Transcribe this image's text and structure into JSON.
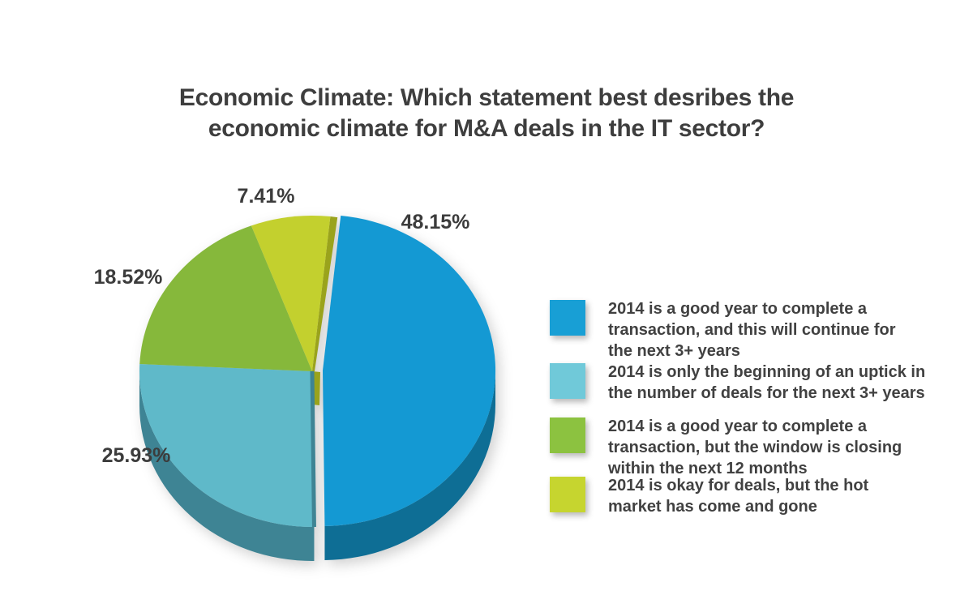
{
  "title": {
    "line1": "Economic Climate: Which statement best desribes the",
    "line2": "economic climate for M&A deals in the IT sector?"
  },
  "chart_data": {
    "type": "pie",
    "title": "Economic Climate: Which statement best desribes the economic climate for M&A deals in the IT sector?",
    "style": "3d-exploded-pie",
    "legend_position": "right",
    "unit": "percent",
    "slices": [
      {
        "id": "blue",
        "label": "2014 is a good year to complete a transaction, and this will continue for the next 3+ years",
        "value": 48.15,
        "display": "48.15%",
        "color": "#1499d3",
        "side_color": "#0e6e95",
        "exploded": true
      },
      {
        "id": "teal",
        "label": "2014 is only the beginning of an uptick in the number of deals for the next 3+ years",
        "value": 25.93,
        "display": "25.93%",
        "color": "#5fb9c9",
        "side_color": "#3e8494",
        "exploded": false
      },
      {
        "id": "green",
        "label": "2014 is a good year to complete a transaction, but the window is closing within the next 12 months",
        "value": 18.52,
        "display": "18.52%",
        "color": "#86b83b",
        "side_color": "#5e8a35",
        "exploded": false
      },
      {
        "id": "yellow",
        "label": "2014 is okay for deals, but the hot market has come and gone",
        "value": 7.41,
        "display": "7.41%",
        "color": "#c3d02e",
        "side_color": "#9aa31c",
        "exploded": false
      }
    ]
  },
  "legend": {
    "items": [
      {
        "swatch_color": "#189fd5",
        "lines": [
          "2014 is a good year to complete a",
          "transaction, and this will continue for",
          "the next 3+ years"
        ]
      },
      {
        "swatch_color": "#70c9d9",
        "lines": [
          "2014 is only the beginning of an uptick in",
          "the number of deals for the next 3+ years"
        ]
      },
      {
        "swatch_color": "#8cc240",
        "lines": [
          "2014 is a good year to complete a",
          "transaction, but the window is closing",
          "within the next 12 months"
        ]
      },
      {
        "swatch_color": "#c6d52f",
        "lines": [
          "2014 is okay for deals, but the hot",
          "market has come and gone"
        ]
      }
    ]
  }
}
